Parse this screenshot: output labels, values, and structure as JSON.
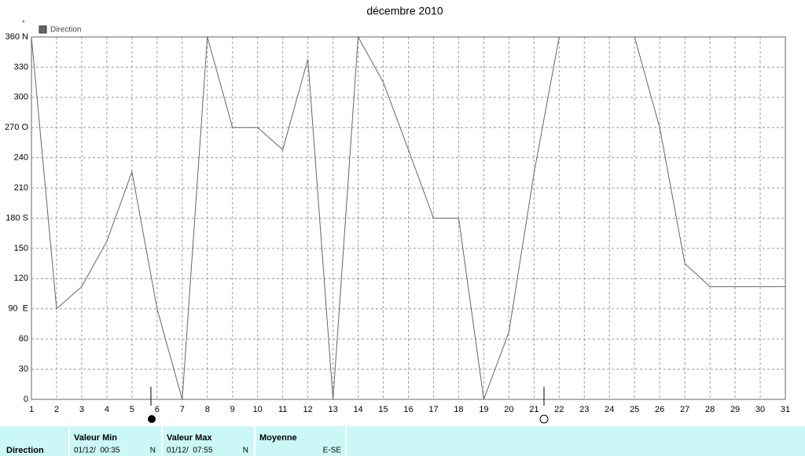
{
  "chart_data": {
    "type": "line",
    "title": "décembre 2010",
    "y_label": "°",
    "x": [
      1,
      2,
      3,
      4,
      5,
      6,
      7,
      8,
      9,
      10,
      11,
      12,
      13,
      14,
      15,
      16,
      17,
      18,
      19,
      20,
      21,
      22,
      23,
      24,
      25,
      26,
      27,
      28,
      29,
      30,
      31
    ],
    "xlim": [
      1,
      31
    ],
    "xticks": [
      1,
      2,
      3,
      4,
      5,
      6,
      7,
      8,
      9,
      10,
      11,
      12,
      13,
      14,
      15,
      16,
      17,
      18,
      19,
      20,
      21,
      22,
      23,
      24,
      25,
      26,
      27,
      28,
      29,
      30,
      31
    ],
    "ylim": [
      0,
      360
    ],
    "yticks": [
      0,
      30,
      60,
      {
        "value": 90,
        "label": "90  E"
      },
      120,
      150,
      {
        "value": 180,
        "label": "180 S"
      },
      210,
      240,
      {
        "value": 270,
        "label": "270 O"
      },
      300,
      330,
      {
        "value": 360,
        "label": "360 N"
      }
    ],
    "grid": true,
    "series": [
      {
        "name": "Direction",
        "color": "#666666",
        "values": [
          360,
          90,
          112,
          157,
          226,
          90,
          0,
          360,
          270,
          270,
          248,
          338,
          0,
          360,
          315,
          248,
          180,
          180,
          0,
          67,
          225,
          360,
          360,
          360,
          360,
          270,
          135,
          112,
          112,
          112,
          112
        ]
      }
    ]
  },
  "table": {
    "row_label": "Direction",
    "columns": [
      {
        "header": "Valeur Min",
        "date": "01/12/  00:35",
        "dir": "N"
      },
      {
        "header": "Valeur Max",
        "date": "01/12/  07:55",
        "dir": "N"
      },
      {
        "header": "Moyenne",
        "dir": "E-SE"
      }
    ]
  }
}
